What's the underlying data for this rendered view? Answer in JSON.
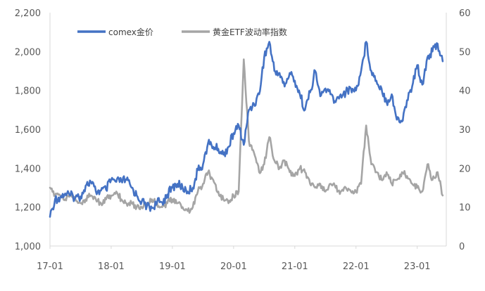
{
  "chart_data": {
    "type": "line",
    "title": "",
    "xlabel": "",
    "ylabel": "",
    "x_ticks": [
      "17-01",
      "18-01",
      "19-01",
      "20-01",
      "21-01",
      "22-01",
      "23-01"
    ],
    "y_left": {
      "range": [
        1000,
        2200
      ],
      "ticks": [
        "1,000",
        "1,200",
        "1,400",
        "1,600",
        "1,800",
        "2,000",
        "2,200"
      ]
    },
    "y_right": {
      "range": [
        0,
        60
      ],
      "ticks": [
        "0",
        "10",
        "20",
        "30",
        "40",
        "50",
        "60"
      ]
    },
    "grid": false,
    "legend_position": "top-left",
    "series": [
      {
        "name": "comex金价",
        "axis": "left",
        "color": "#4472C4",
        "points": [
          [
            "2017-01",
            1150
          ],
          [
            "2017-02",
            1240
          ],
          [
            "2017-03",
            1250
          ],
          [
            "2017-04",
            1270
          ],
          [
            "2017-05",
            1260
          ],
          [
            "2017-06",
            1250
          ],
          [
            "2017-07",
            1255
          ],
          [
            "2017-08",
            1310
          ],
          [
            "2017-09",
            1330
          ],
          [
            "2017-10",
            1280
          ],
          [
            "2017-11",
            1285
          ],
          [
            "2017-12",
            1290
          ],
          [
            "2018-01",
            1340
          ],
          [
            "2018-02",
            1330
          ],
          [
            "2018-03",
            1335
          ],
          [
            "2018-04",
            1340
          ],
          [
            "2018-05",
            1300
          ],
          [
            "2018-06",
            1260
          ],
          [
            "2018-07",
            1230
          ],
          [
            "2018-08",
            1205
          ],
          [
            "2018-09",
            1195
          ],
          [
            "2018-10",
            1225
          ],
          [
            "2018-11",
            1225
          ],
          [
            "2018-12",
            1265
          ],
          [
            "2019-01",
            1300
          ],
          [
            "2019-02",
            1320
          ],
          [
            "2019-03",
            1300
          ],
          [
            "2019-04",
            1280
          ],
          [
            "2019-05",
            1300
          ],
          [
            "2019-06",
            1390
          ],
          [
            "2019-07",
            1420
          ],
          [
            "2019-08",
            1530
          ],
          [
            "2019-09",
            1510
          ],
          [
            "2019-10",
            1500
          ],
          [
            "2019-11",
            1470
          ],
          [
            "2019-12",
            1510
          ],
          [
            "2020-01",
            1580
          ],
          [
            "2020-02",
            1620
          ],
          [
            "2020-03",
            1520
          ],
          [
            "2020-04",
            1700
          ],
          [
            "2020-05",
            1730
          ],
          [
            "2020-06",
            1780
          ],
          [
            "2020-07",
            1970
          ],
          [
            "2020-08",
            2050
          ],
          [
            "2020-09",
            1900
          ],
          [
            "2020-10",
            1890
          ],
          [
            "2020-11",
            1820
          ],
          [
            "2020-12",
            1890
          ],
          [
            "2021-01",
            1850
          ],
          [
            "2021-02",
            1780
          ],
          [
            "2021-03",
            1700
          ],
          [
            "2021-04",
            1790
          ],
          [
            "2021-05",
            1900
          ],
          [
            "2021-06",
            1770
          ],
          [
            "2021-07",
            1810
          ],
          [
            "2021-08",
            1780
          ],
          [
            "2021-09",
            1740
          ],
          [
            "2021-10",
            1780
          ],
          [
            "2021-11",
            1790
          ],
          [
            "2021-12",
            1810
          ],
          [
            "2022-01",
            1800
          ],
          [
            "2022-02",
            1900
          ],
          [
            "2022-03",
            2050
          ],
          [
            "2022-04",
            1900
          ],
          [
            "2022-05",
            1850
          ],
          [
            "2022-06",
            1810
          ],
          [
            "2022-07",
            1740
          ],
          [
            "2022-08",
            1780
          ],
          [
            "2022-09",
            1650
          ],
          [
            "2022-10",
            1640
          ],
          [
            "2022-11",
            1750
          ],
          [
            "2022-12",
            1820
          ],
          [
            "2023-01",
            1930
          ],
          [
            "2023-02",
            1830
          ],
          [
            "2023-03",
            1970
          ],
          [
            "2023-04",
            2000
          ],
          [
            "2023-05",
            2040
          ],
          [
            "2023-06",
            1950
          ]
        ]
      },
      {
        "name": "黄金ETF波动率指数",
        "axis": "right",
        "color": "#A5A5A5",
        "points": [
          [
            "2017-01",
            15
          ],
          [
            "2017-02",
            13
          ],
          [
            "2017-03",
            13
          ],
          [
            "2017-04",
            12
          ],
          [
            "2017-05",
            13
          ],
          [
            "2017-06",
            12
          ],
          [
            "2017-07",
            11
          ],
          [
            "2017-08",
            12
          ],
          [
            "2017-09",
            13
          ],
          [
            "2017-10",
            12
          ],
          [
            "2017-11",
            11
          ],
          [
            "2017-12",
            12
          ],
          [
            "2018-01",
            13
          ],
          [
            "2018-02",
            14
          ],
          [
            "2018-03",
            12
          ],
          [
            "2018-04",
            11
          ],
          [
            "2018-05",
            11
          ],
          [
            "2018-06",
            10
          ],
          [
            "2018-07",
            10
          ],
          [
            "2018-08",
            11
          ],
          [
            "2018-09",
            12
          ],
          [
            "2018-10",
            11
          ],
          [
            "2018-11",
            10
          ],
          [
            "2018-12",
            11
          ],
          [
            "2019-01",
            12
          ],
          [
            "2019-02",
            11
          ],
          [
            "2019-03",
            10
          ],
          [
            "2019-04",
            9
          ],
          [
            "2019-05",
            10
          ],
          [
            "2019-06",
            14
          ],
          [
            "2019-07",
            16
          ],
          [
            "2019-08",
            19
          ],
          [
            "2019-09",
            17
          ],
          [
            "2019-10",
            14
          ],
          [
            "2019-11",
            12
          ],
          [
            "2019-12",
            11
          ],
          [
            "2020-01",
            13
          ],
          [
            "2020-02",
            14
          ],
          [
            "2020-03",
            48
          ],
          [
            "2020-04",
            27
          ],
          [
            "2020-05",
            24
          ],
          [
            "2020-06",
            19
          ],
          [
            "2020-07",
            21
          ],
          [
            "2020-08",
            28
          ],
          [
            "2020-09",
            22
          ],
          [
            "2020-10",
            20
          ],
          [
            "2020-11",
            22
          ],
          [
            "2020-12",
            19
          ],
          [
            "2021-01",
            18
          ],
          [
            "2021-02",
            20
          ],
          [
            "2021-03",
            19
          ],
          [
            "2021-04",
            16
          ],
          [
            "2021-05",
            15
          ],
          [
            "2021-06",
            16
          ],
          [
            "2021-07",
            14
          ],
          [
            "2021-08",
            16
          ],
          [
            "2021-09",
            15
          ],
          [
            "2021-10",
            14
          ],
          [
            "2021-11",
            15
          ],
          [
            "2021-12",
            14
          ],
          [
            "2022-01",
            14
          ],
          [
            "2022-02",
            16
          ],
          [
            "2022-03",
            31
          ],
          [
            "2022-04",
            21
          ],
          [
            "2022-05",
            19
          ],
          [
            "2022-06",
            17
          ],
          [
            "2022-07",
            19
          ],
          [
            "2022-08",
            16
          ],
          [
            "2022-09",
            17
          ],
          [
            "2022-10",
            19
          ],
          [
            "2022-11",
            18
          ],
          [
            "2022-12",
            16
          ],
          [
            "2023-01",
            15
          ],
          [
            "2023-02",
            14
          ],
          [
            "2023-03",
            21
          ],
          [
            "2023-04",
            17
          ],
          [
            "2023-05",
            19
          ],
          [
            "2023-06",
            13
          ]
        ]
      }
    ]
  }
}
